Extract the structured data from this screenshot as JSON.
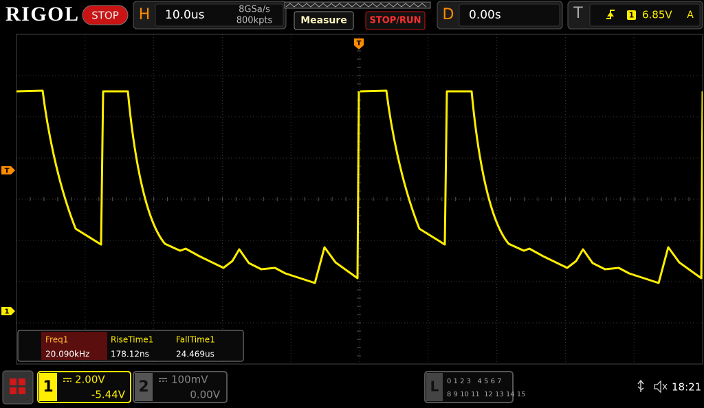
{
  "header": {
    "logo": "RIGOL",
    "status": "STOP",
    "horizontal": {
      "label": "H",
      "timebase": "10.0us",
      "sample_rate": "8GSa/s",
      "memory_depth": "800kpts"
    },
    "measure_button": "Measure",
    "stop_run_button": "STOP/RUN",
    "delay": {
      "label": "D",
      "value": "0.00s"
    },
    "trigger": {
      "label": "T",
      "source": "1",
      "level": "6.85V",
      "mode": "A"
    }
  },
  "markers": {
    "trigger_position": "T",
    "trigger_level": "T",
    "channel1": "1"
  },
  "measurements": {
    "headers": [
      "Freq1",
      "RiseTime1",
      "FallTime1"
    ],
    "values": [
      "20.090kHz",
      "178.12ns",
      "24.469us"
    ]
  },
  "channels": [
    {
      "number": "1",
      "scale": "2.00V",
      "offset": "-5.44V"
    },
    {
      "number": "2",
      "scale": "100mV",
      "offset": "0.00V"
    }
  ],
  "logic": {
    "label": "L",
    "row1": "0 1 2 3   4 5 6 7",
    "row2": "8 9 10 11  12 13 14 15"
  },
  "clock": "18:21"
}
